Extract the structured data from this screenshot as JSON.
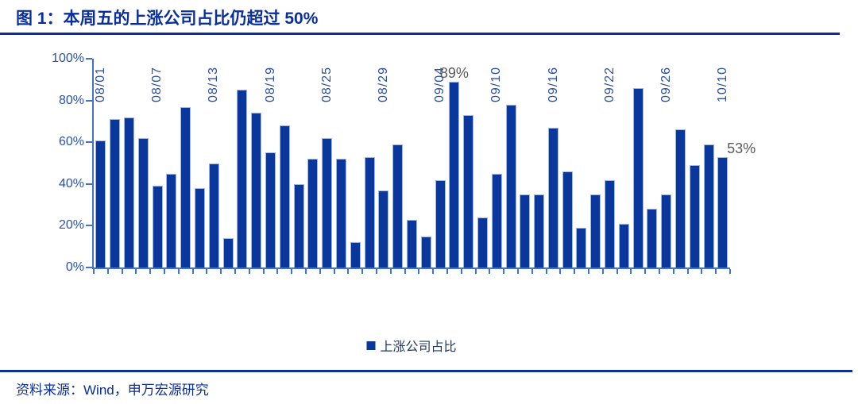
{
  "figure": {
    "title": "图 1：本周五的上涨公司占比仍超过 50%",
    "source": "资料来源：Wind，申万宏源研究"
  },
  "legend": {
    "label": "上涨公司占比"
  },
  "colors": {
    "accent_navy": "#0A2F9C",
    "bar_fill": "#0A379B",
    "bar_border": "#9FB6E4",
    "axis_line": "#4472C4",
    "tick_label": "#2B50A8",
    "annotation_gray": "#595959",
    "legend_text": "#1F3864"
  },
  "chart_data": {
    "type": "bar",
    "series_name": "上涨公司占比",
    "values": [
      61,
      71,
      72,
      62,
      39,
      45,
      77,
      38,
      50,
      14,
      85,
      74,
      55,
      68,
      40,
      52,
      62,
      52,
      12,
      53,
      37,
      59,
      23,
      15,
      42,
      89,
      73,
      24,
      45,
      78,
      35,
      35,
      67,
      46,
      19,
      35,
      42,
      21,
      86,
      28,
      35,
      66,
      49,
      59,
      53
    ],
    "x_tick_labels": [
      {
        "index": 0,
        "label": "08/01"
      },
      {
        "index": 4,
        "label": "08/07"
      },
      {
        "index": 8,
        "label": "08/13"
      },
      {
        "index": 12,
        "label": "08/19"
      },
      {
        "index": 16,
        "label": "08/25"
      },
      {
        "index": 20,
        "label": "08/29"
      },
      {
        "index": 24,
        "label": "09/04"
      },
      {
        "index": 28,
        "label": "09/10"
      },
      {
        "index": 32,
        "label": "09/16"
      },
      {
        "index": 36,
        "label": "09/22"
      },
      {
        "index": 40,
        "label": "09/26"
      },
      {
        "index": 44,
        "label": "10/10"
      }
    ],
    "y_tick_labels": [
      "0%",
      "20%",
      "40%",
      "60%",
      "80%",
      "100%"
    ],
    "ylim": [
      0,
      100
    ],
    "grid": "off",
    "legend_position": "bottom-center",
    "annotations": [
      {
        "index": 25,
        "text": "89%",
        "anchor": "center",
        "dy": -26
      },
      {
        "index": 44,
        "text": "53%",
        "anchor": "right-of-bar",
        "dy": -26
      }
    ]
  }
}
